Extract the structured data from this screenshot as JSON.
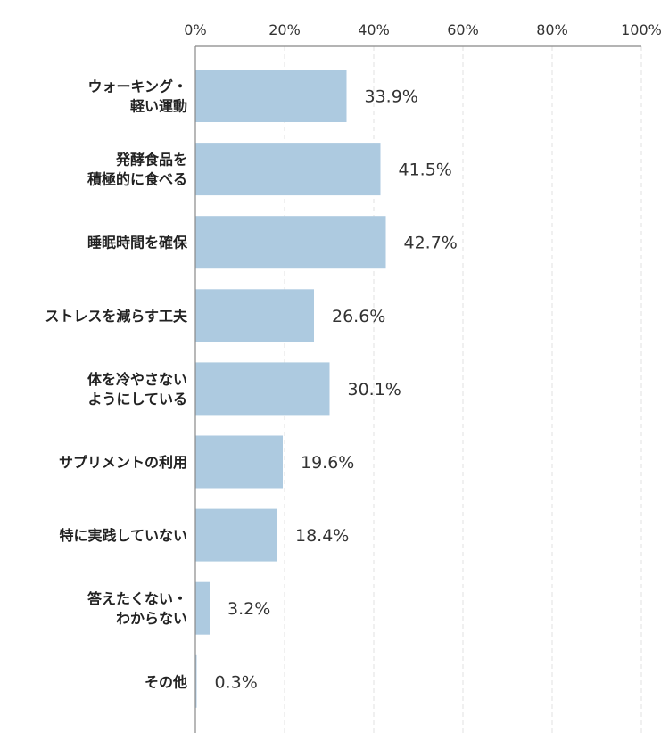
{
  "chart_data": {
    "type": "bar",
    "orientation": "horizontal",
    "categories": [
      [
        "ウォーキング・",
        "軽い運動"
      ],
      [
        "発酵食品を",
        "積極的に食べる"
      ],
      [
        "睡眠時間を確保"
      ],
      [
        "ストレスを減らす工夫"
      ],
      [
        "体を冷やさない",
        "ようにしている"
      ],
      [
        "サプリメントの利用"
      ],
      [
        "特に実践していない"
      ],
      [
        "答えたくない・",
        "わからない"
      ],
      [
        "その他"
      ]
    ],
    "values": [
      33.9,
      41.5,
      42.7,
      26.6,
      30.1,
      19.6,
      18.4,
      3.2,
      0.3
    ],
    "value_labels": [
      "33.9%",
      "41.5%",
      "42.7%",
      "26.6%",
      "30.1%",
      "19.6%",
      "18.4%",
      "3.2%",
      "0.3%"
    ],
    "x_ticks": [
      0,
      20,
      40,
      60,
      80,
      100
    ],
    "x_tick_labels": [
      "0%",
      "20%",
      "40%",
      "60%",
      "80%",
      "100%"
    ],
    "xlim": [
      0,
      100
    ],
    "axis_position": "top",
    "grid": true,
    "title": "",
    "xlabel": "",
    "ylabel": "",
    "colors": {
      "bar": "#adcae0",
      "axis": "#888888",
      "grid": "#e2e2e2",
      "text": "#333333"
    }
  }
}
